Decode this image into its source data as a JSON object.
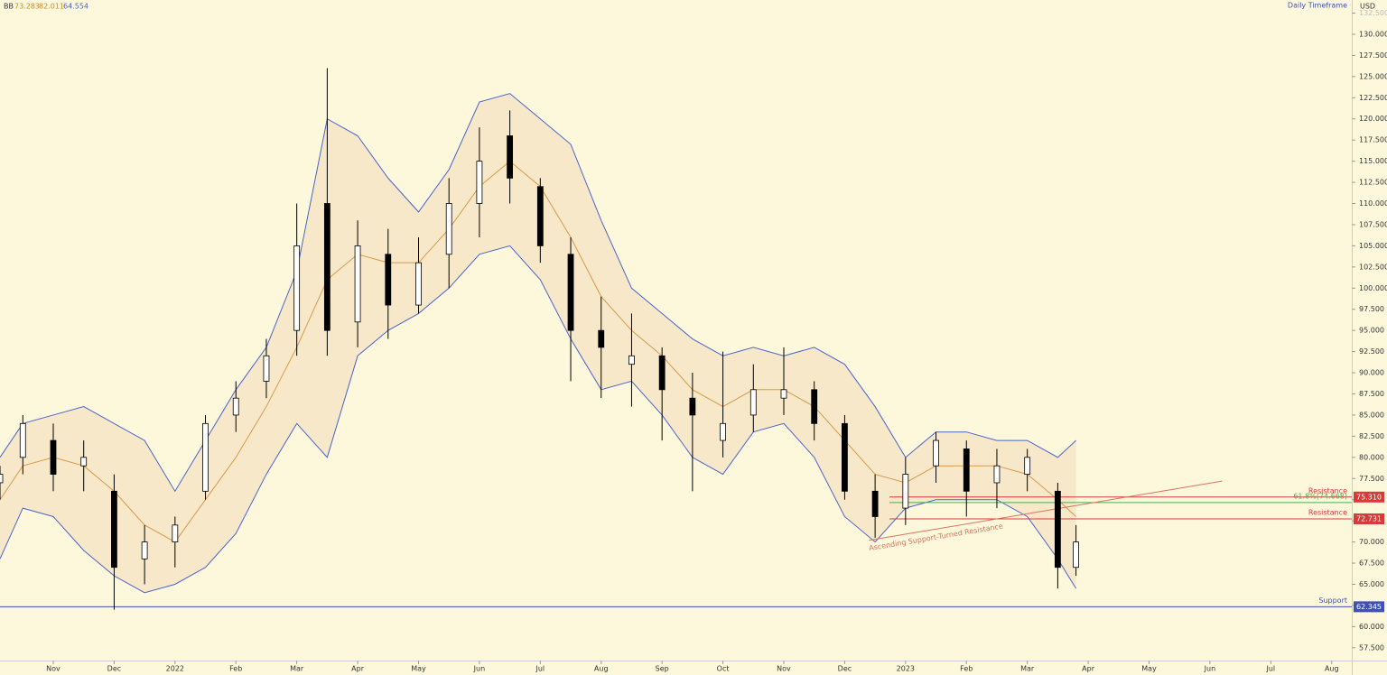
{
  "chart_data": {
    "type": "candlestick",
    "title": "Daily Timeframe",
    "currency": "USD",
    "legend": {
      "name": "BB",
      "values": [
        "73.283",
        "82.011",
        "64.554"
      ],
      "colors": [
        "#c98b2b",
        "#c98b2b",
        "#4a64c8"
      ]
    },
    "xlim": [
      -0.875,
      21.33
    ],
    "xticks": [
      {
        "value": 0,
        "label": "Nov"
      },
      {
        "value": 1,
        "label": "Dec"
      },
      {
        "value": 2,
        "label": "2022"
      },
      {
        "value": 3,
        "label": "Feb"
      },
      {
        "value": 4,
        "label": "Mar"
      },
      {
        "value": 5,
        "label": "Apr"
      },
      {
        "value": 6,
        "label": "May"
      },
      {
        "value": 7,
        "label": "Jun"
      },
      {
        "value": 8,
        "label": "Jul"
      },
      {
        "value": 9,
        "label": "Aug"
      },
      {
        "value": 10,
        "label": "Sep"
      },
      {
        "value": 11,
        "label": "Oct"
      },
      {
        "value": 12,
        "label": "Nov"
      },
      {
        "value": 13,
        "label": "Dec"
      },
      {
        "value": 14,
        "label": "2023"
      },
      {
        "value": 15,
        "label": "Feb"
      },
      {
        "value": 16,
        "label": "Mar"
      },
      {
        "value": 17,
        "label": "Apr"
      },
      {
        "value": 18,
        "label": "May"
      },
      {
        "value": 19,
        "label": "Jun"
      },
      {
        "value": 20,
        "label": "Jul"
      },
      {
        "value": 21,
        "label": "Aug"
      }
    ],
    "ylim": [
      56.2,
      134.05
    ],
    "yticks": [
      {
        "value": 57.5,
        "label": "57.500"
      },
      {
        "value": 60,
        "label": "60.000"
      },
      {
        "value": 62.5,
        "label": "62.500"
      },
      {
        "value": 65,
        "label": "65.000"
      },
      {
        "value": 67.5,
        "label": "67.500"
      },
      {
        "value": 70,
        "label": "70.000"
      },
      {
        "value": 72.5,
        "label": "72.500"
      },
      {
        "value": 75,
        "label": "75.000"
      },
      {
        "value": 77.5,
        "label": "77.500"
      },
      {
        "value": 80,
        "label": "80.000"
      },
      {
        "value": 82.5,
        "label": "82.500"
      },
      {
        "value": 85,
        "label": "85.000"
      },
      {
        "value": 87.5,
        "label": "87.500"
      },
      {
        "value": 90,
        "label": "90.000"
      },
      {
        "value": 92.5,
        "label": "92.500"
      },
      {
        "value": 95,
        "label": "95.000"
      },
      {
        "value": 97.5,
        "label": "97.500"
      },
      {
        "value": 100,
        "label": "100.000"
      },
      {
        "value": 102.5,
        "label": "102.500"
      },
      {
        "value": 105,
        "label": "105.000"
      },
      {
        "value": 107.5,
        "label": "107.500"
      },
      {
        "value": 110,
        "label": "110.000"
      },
      {
        "value": 112.5,
        "label": "112.500"
      },
      {
        "value": 115,
        "label": "115.000"
      },
      {
        "value": 117.5,
        "label": "117.500"
      },
      {
        "value": 120,
        "label": "120.000"
      },
      {
        "value": 122.5,
        "label": "122.500"
      },
      {
        "value": 125,
        "label": "125.000"
      },
      {
        "value": 127.5,
        "label": "127.500"
      },
      {
        "value": 130,
        "label": "130.000"
      },
      {
        "value": 132.5,
        "label": "132.500"
      }
    ],
    "x": [
      -0.875,
      -0.5,
      0,
      0.5,
      1,
      1.5,
      2,
      2.5,
      3,
      3.5,
      4,
      4.5,
      5,
      5.5,
      6,
      6.5,
      7,
      7.5,
      8,
      8.5,
      9,
      9.5,
      10,
      10.5,
      11,
      11.5,
      12,
      12.5,
      13,
      13.5,
      14,
      14.5,
      15,
      15.5,
      16,
      16.5,
      16.8
    ],
    "open": [
      77,
      80,
      82,
      79,
      76,
      68,
      70,
      76,
      85,
      89,
      95,
      110,
      96,
      104,
      98,
      104,
      110,
      118,
      112,
      104,
      95,
      91,
      92,
      87,
      82,
      85,
      87,
      88,
      84,
      76,
      74,
      79,
      81,
      77,
      78,
      76,
      67
    ],
    "high": [
      79,
      85,
      84,
      82,
      78,
      72,
      73,
      85,
      89,
      94,
      110,
      126,
      108,
      107,
      106,
      113,
      119,
      121,
      113,
      106,
      99,
      97,
      93,
      90,
      92.5,
      91,
      93,
      89,
      85,
      78,
      80,
      83,
      82,
      81,
      81,
      77,
      72
    ],
    "low": [
      75,
      78,
      76,
      76,
      62,
      65,
      67,
      75,
      83,
      87,
      92,
      92,
      93,
      94,
      97,
      100,
      106,
      110,
      103,
      89,
      87,
      86,
      82,
      76,
      80,
      83,
      85,
      82,
      75,
      70.5,
      72,
      77,
      73,
      74,
      76,
      64.5,
      66
    ],
    "close": [
      78,
      84,
      78,
      80,
      67,
      70,
      72,
      84,
      87,
      92,
      105,
      95,
      105,
      98,
      103,
      110,
      115,
      113,
      105,
      95,
      93,
      92,
      88,
      85,
      84,
      88,
      88,
      84,
      76,
      73,
      78,
      82,
      76,
      79,
      80,
      67,
      70
    ],
    "bands": [
      {
        "name": "upper",
        "color": "#4a64c8",
        "values": [
          80,
          84,
          85,
          86,
          84,
          82,
          76,
          82,
          88,
          93,
          102,
          120,
          118,
          113,
          109,
          114,
          122,
          123,
          120,
          117,
          108,
          100,
          97,
          94,
          92,
          93,
          92,
          93,
          91,
          86,
          80,
          83,
          83,
          82,
          82,
          80,
          82
        ]
      },
      {
        "name": "basis",
        "color": "#d9994a",
        "values": [
          75,
          79,
          80,
          79,
          76,
          72,
          70,
          75,
          80,
          86,
          93,
          101,
          104,
          103,
          103,
          107,
          112,
          115,
          112,
          106,
          99,
          95,
          92,
          88,
          86,
          88,
          88,
          86,
          82,
          78,
          77,
          79,
          79,
          79,
          78,
          75,
          73
        ]
      },
      {
        "name": "lower",
        "color": "#4a64c8",
        "values": [
          68,
          74,
          73,
          69,
          66,
          64,
          65,
          67,
          71,
          78,
          84,
          80,
          92,
          95,
          97,
          100,
          104,
          105,
          101,
          94,
          88,
          89,
          85,
          80,
          78,
          83,
          84,
          80,
          73,
          70,
          74,
          75,
          75,
          75,
          73,
          68,
          64.5
        ]
      }
    ],
    "levels": [
      {
        "label": "Resistance",
        "value": 75.31,
        "value_label": "75.310",
        "color": "#d83a3a"
      },
      {
        "label": "Resistance",
        "value": 72.731,
        "value_label": "72.731",
        "color": "#d83a3a"
      },
      {
        "label": "61.8%(74.668)",
        "value": 74.668,
        "color": "#4caf50"
      },
      {
        "label": "Support",
        "value": 62.345,
        "value_label": "62.345",
        "color": "#3f51b5"
      }
    ],
    "trendline": {
      "label": "Ascending Support-Turned Resistance",
      "x": [
        13.4,
        19.2
      ],
      "y": [
        70.2,
        77.2
      ],
      "color": "#d9735a"
    }
  }
}
